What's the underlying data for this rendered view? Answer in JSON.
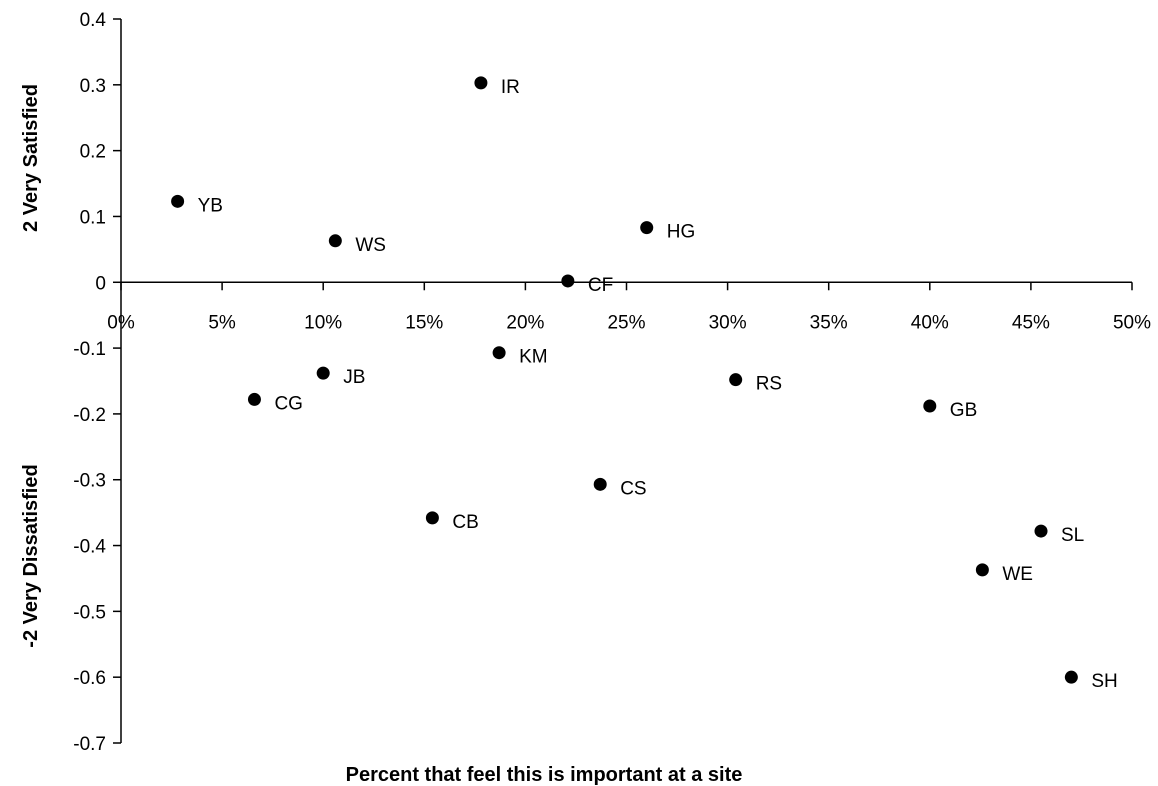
{
  "chart_data": {
    "type": "scatter",
    "title": "",
    "xlabel": "Percent that feel this is important at a site",
    "ylabel_top": "2 Very Satisfied",
    "ylabel_bottom": "-2 Very Dissatisfied",
    "xlim": [
      0,
      0.5
    ],
    "ylim": [
      -0.7,
      0.4
    ],
    "grid": false,
    "x_ticks": [
      0,
      0.05,
      0.1,
      0.15,
      0.2,
      0.25,
      0.3,
      0.35,
      0.4,
      0.45,
      0.5
    ],
    "x_tick_labels": [
      "0%",
      "5%",
      "10%",
      "15%",
      "20%",
      "25%",
      "30%",
      "35%",
      "40%",
      "45%",
      "50%"
    ],
    "y_ticks": [
      0.4,
      0.3,
      0.2,
      0.1,
      0,
      -0.1,
      -0.2,
      -0.3,
      -0.4,
      -0.5,
      -0.6,
      -0.7
    ],
    "y_tick_labels": [
      "0.4",
      "0.3",
      "0.2",
      "0.1",
      "0",
      "-0.1",
      "-0.2",
      "-0.3",
      "-0.4",
      "-0.5",
      "-0.6",
      "-0.7"
    ],
    "points": [
      {
        "label": "IR",
        "x": 0.178,
        "y": 0.303
      },
      {
        "label": "YB",
        "x": 0.028,
        "y": 0.123
      },
      {
        "label": "WS",
        "x": 0.106,
        "y": 0.063
      },
      {
        "label": "HG",
        "x": 0.26,
        "y": 0.083
      },
      {
        "label": "CF",
        "x": 0.221,
        "y": 0.002
      },
      {
        "label": "KM",
        "x": 0.187,
        "y": -0.107
      },
      {
        "label": "JB",
        "x": 0.1,
        "y": -0.138
      },
      {
        "label": "CG",
        "x": 0.066,
        "y": -0.178
      },
      {
        "label": "RS",
        "x": 0.304,
        "y": -0.148
      },
      {
        "label": "GB",
        "x": 0.4,
        "y": -0.188
      },
      {
        "label": "CS",
        "x": 0.237,
        "y": -0.307
      },
      {
        "label": "CB",
        "x": 0.154,
        "y": -0.358
      },
      {
        "label": "SL",
        "x": 0.455,
        "y": -0.378
      },
      {
        "label": "WE",
        "x": 0.426,
        "y": -0.437
      },
      {
        "label": "SH",
        "x": 0.47,
        "y": -0.6
      }
    ]
  }
}
